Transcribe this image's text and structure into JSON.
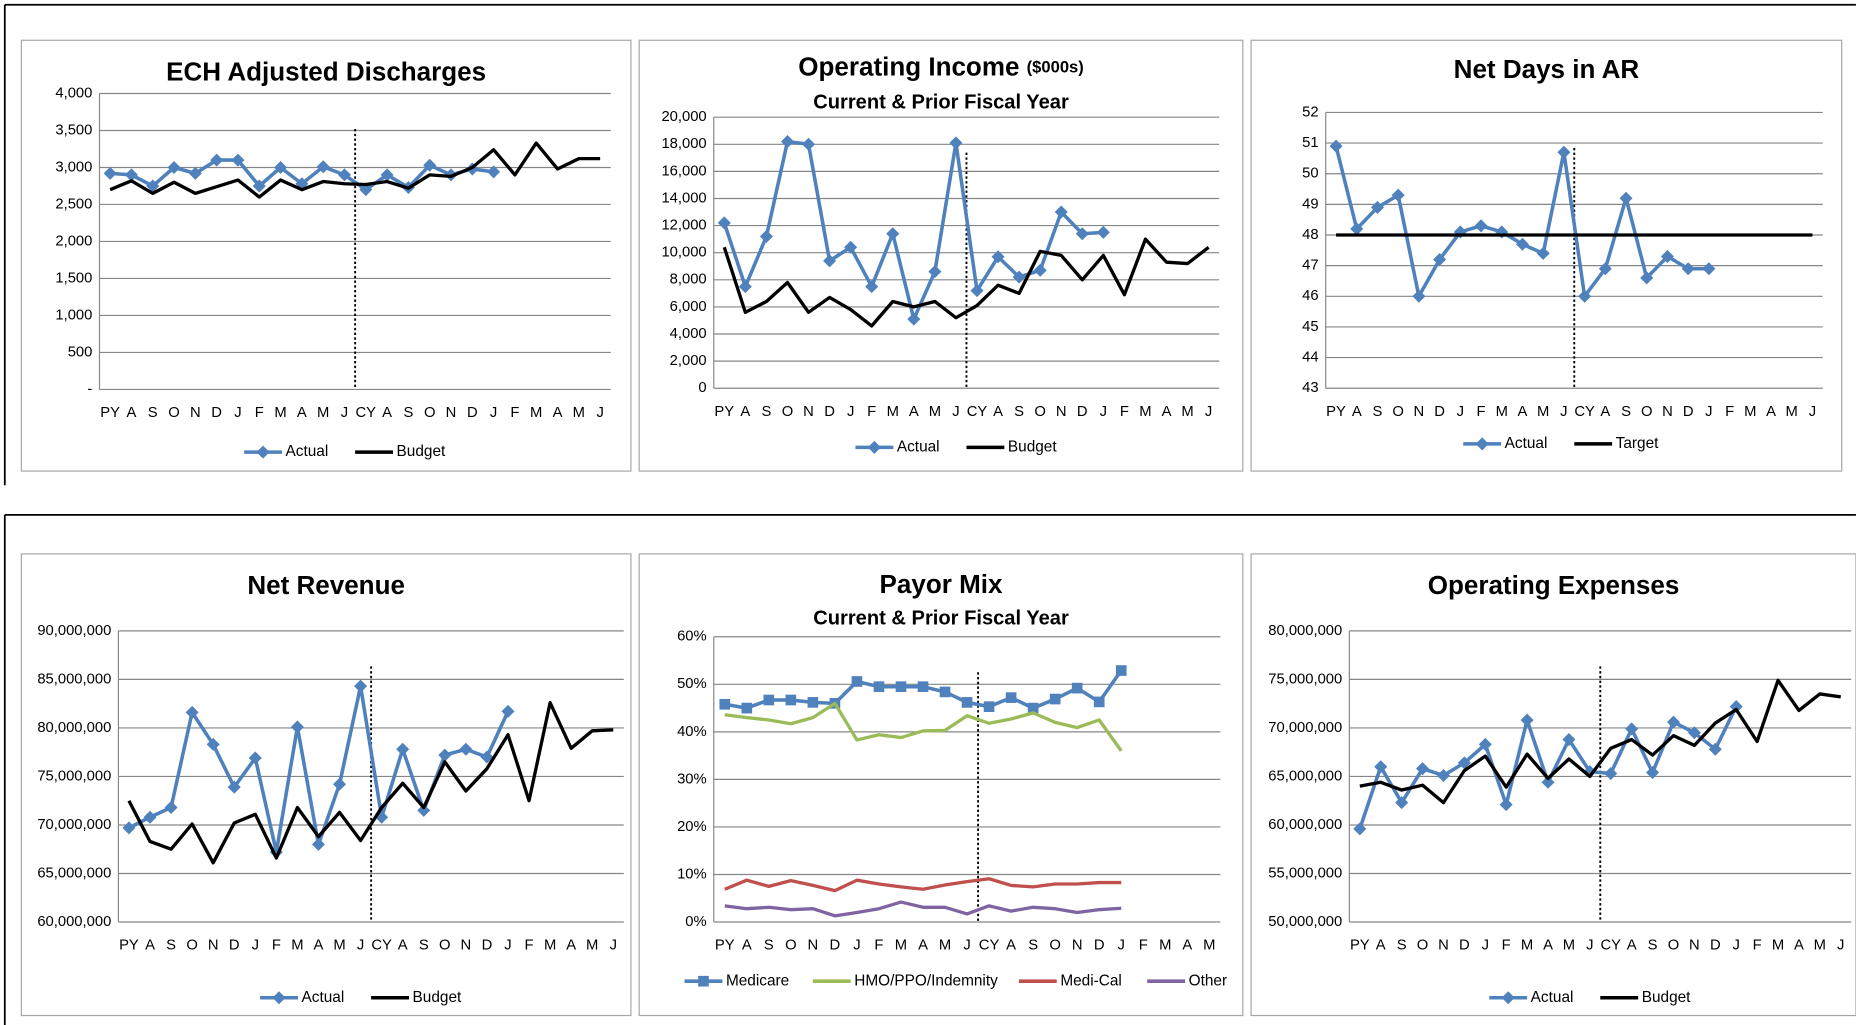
{
  "chart_data": [
    {
      "type": "line",
      "title": "ECH Adjusted Discharges",
      "categories": [
        "PY",
        "A",
        "S",
        "O",
        "N",
        "D",
        "J",
        "F",
        "M",
        "A",
        "M",
        "J",
        "CY",
        "A",
        "S",
        "O",
        "N",
        "D",
        "J",
        "F",
        "M",
        "A",
        "M",
        "J"
      ],
      "ylim": [
        0,
        4000
      ],
      "yticks": [
        {
          "value": 0,
          "label": "-"
        },
        500,
        {
          "value": 1000,
          "label": "1,000"
        },
        {
          "value": 1500,
          "label": "1,500"
        },
        {
          "value": 2000,
          "label": "2,000"
        },
        {
          "value": 2500,
          "label": "2,500"
        },
        {
          "value": 3000,
          "label": "3,000"
        },
        {
          "value": 3500,
          "label": "3,500"
        },
        {
          "value": 4000,
          "label": "4,000"
        }
      ],
      "grid": true,
      "series": [
        {
          "name": "Actual",
          "color": "#4f81bd",
          "marker": "diamond",
          "values": [
            2920,
            2900,
            2750,
            3000,
            2920,
            3100,
            3100,
            2750,
            3000,
            2780,
            3010,
            2900,
            2700,
            2900,
            2730,
            3030,
            2900,
            2980,
            2940,
            null,
            null,
            null,
            null,
            null
          ]
        },
        {
          "name": "Budget",
          "color": "#000000",
          "values": [
            2700,
            2820,
            2650,
            2800,
            2650,
            2740,
            2830,
            2600,
            2830,
            2700,
            2810,
            2780,
            2770,
            2810,
            2720,
            2900,
            2880,
            3000,
            3240,
            2900,
            3330,
            2980,
            3120,
            3120
          ]
        }
      ]
    },
    {
      "type": "line",
      "title": "Operating Income",
      "title_note": "($000s)",
      "subtitle": "Current & Prior Fiscal Year",
      "categories": [
        "PY",
        "A",
        "S",
        "O",
        "N",
        "D",
        "J",
        "F",
        "M",
        "A",
        "M",
        "J",
        "CY",
        "A",
        "S",
        "O",
        "N",
        "D",
        "J",
        "F",
        "M",
        "A",
        "M",
        "J"
      ],
      "ylim": [
        0,
        20000
      ],
      "yticks": [
        0,
        {
          "value": 2000,
          "label": "2,000"
        },
        {
          "value": 4000,
          "label": "4,000"
        },
        {
          "value": 6000,
          "label": "6,000"
        },
        {
          "value": 8000,
          "label": "8,000"
        },
        {
          "value": 10000,
          "label": "10,000"
        },
        {
          "value": 12000,
          "label": "12,000"
        },
        {
          "value": 14000,
          "label": "14,000"
        },
        {
          "value": 16000,
          "label": "16,000"
        },
        {
          "value": 18000,
          "label": "18,000"
        },
        {
          "value": 20000,
          "label": "20,000"
        }
      ],
      "grid": true,
      "series": [
        {
          "name": "Actual",
          "color": "#4f81bd",
          "marker": "diamond",
          "values": [
            12200,
            7500,
            11200,
            18200,
            18000,
            9400,
            10400,
            7500,
            11400,
            5100,
            8600,
            18100,
            7200,
            9700,
            8200,
            8700,
            13000,
            11400,
            11500,
            null,
            null,
            null,
            null,
            null
          ]
        },
        {
          "name": "Budget",
          "color": "#000000",
          "values": [
            10400,
            5600,
            6400,
            7800,
            5600,
            6700,
            5800,
            4600,
            6400,
            6000,
            6400,
            5200,
            6100,
            7600,
            7000,
            10100,
            9800,
            8000,
            9800,
            6900,
            11000,
            9300,
            9200,
            10400
          ]
        }
      ]
    },
    {
      "type": "line",
      "title": "Net Days in AR",
      "categories": [
        "PY",
        "A",
        "S",
        "O",
        "N",
        "D",
        "J",
        "F",
        "M",
        "A",
        "M",
        "J",
        "CY",
        "A",
        "S",
        "O",
        "N",
        "D",
        "J",
        "F",
        "M",
        "A",
        "M",
        "J"
      ],
      "ylim": [
        43,
        52
      ],
      "yticks": [
        43,
        44,
        45,
        46,
        47,
        48,
        49,
        50,
        51,
        52
      ],
      "grid": true,
      "series": [
        {
          "name": "Actual",
          "color": "#4f81bd",
          "marker": "diamond",
          "values": [
            50.9,
            48.2,
            48.9,
            49.3,
            46.0,
            47.2,
            48.1,
            48.3,
            48.1,
            47.7,
            47.4,
            50.7,
            46.0,
            46.9,
            49.2,
            46.6,
            47.3,
            46.9,
            46.9,
            null,
            null,
            null,
            null,
            null
          ]
        },
        {
          "name": "Target",
          "color": "#000000",
          "values": [
            48,
            48,
            48,
            48,
            48,
            48,
            48,
            48,
            48,
            48,
            48,
            48,
            48,
            48,
            48,
            48,
            48,
            48,
            48,
            48,
            48,
            48,
            48,
            48
          ]
        }
      ]
    },
    {
      "type": "line",
      "title": "Net Revenue",
      "categories": [
        "PY",
        "A",
        "S",
        "O",
        "N",
        "D",
        "J",
        "F",
        "M",
        "A",
        "M",
        "J",
        "CY",
        "A",
        "S",
        "O",
        "N",
        "D",
        "J",
        "F",
        "M",
        "A",
        "M",
        "J"
      ],
      "ylim": [
        60000000,
        90000000
      ],
      "yticks": [
        {
          "value": 60000000,
          "label": "60,000,000"
        },
        {
          "value": 65000000,
          "label": "65,000,000"
        },
        {
          "value": 70000000,
          "label": "70,000,000"
        },
        {
          "value": 75000000,
          "label": "75,000,000"
        },
        {
          "value": 80000000,
          "label": "80,000,000"
        },
        {
          "value": 85000000,
          "label": "85,000,000"
        },
        {
          "value": 90000000,
          "label": "90,000,000"
        }
      ],
      "grid": true,
      "series": [
        {
          "name": "Actual",
          "color": "#4f81bd",
          "marker": "diamond",
          "values": [
            69700000,
            70800000,
            71800000,
            81600000,
            78300000,
            73900000,
            76900000,
            67200000,
            80100000,
            68000000,
            74200000,
            84300000,
            70800000,
            77800000,
            71500000,
            77200000,
            77800000,
            77000000,
            81700000,
            null,
            null,
            null,
            null,
            null
          ]
        },
        {
          "name": "Budget",
          "color": "#000000",
          "values": [
            72500000,
            68300000,
            67500000,
            70100000,
            66100000,
            70200000,
            71100000,
            66600000,
            71800000,
            68800000,
            71300000,
            68400000,
            71800000,
            74300000,
            71800000,
            76500000,
            73500000,
            75800000,
            79300000,
            72500000,
            82600000,
            77900000,
            79700000,
            79800000
          ]
        }
      ]
    },
    {
      "type": "line",
      "title": "Payor Mix",
      "subtitle": "Current & Prior Fiscal Year",
      "categories": [
        "PY",
        "A",
        "S",
        "O",
        "N",
        "D",
        "J",
        "F",
        "M",
        "A",
        "M",
        "J",
        "CY",
        "A",
        "S",
        "O",
        "N",
        "D",
        "J",
        "F",
        "M",
        "A",
        "M"
      ],
      "ylim": [
        0,
        60
      ],
      "yticks": [
        {
          "value": 0,
          "label": "0%"
        },
        {
          "value": 10,
          "label": "10%"
        },
        {
          "value": 20,
          "label": "20%"
        },
        {
          "value": 30,
          "label": "30%"
        },
        {
          "value": 40,
          "label": "40%"
        },
        {
          "value": 50,
          "label": "50%"
        },
        {
          "value": 60,
          "label": "60%"
        }
      ],
      "grid": true,
      "series": [
        {
          "name": "Medicare",
          "color": "#4f81bd",
          "marker": "square",
          "values": [
            45.8,
            45.0,
            46.7,
            46.7,
            46.2,
            46.0,
            50.6,
            49.5,
            49.5,
            49.5,
            48.4,
            46.2,
            45.3,
            47.2,
            45.0,
            46.9,
            49.2,
            46.3,
            52.9,
            null,
            null,
            null,
            null
          ]
        },
        {
          "name": "HMO/PPO/Indemnity",
          "color": "#9bbb59",
          "values": [
            43.6,
            43.0,
            42.5,
            41.7,
            43.0,
            46.0,
            38.3,
            39.4,
            38.8,
            40.2,
            40.3,
            43.4,
            41.8,
            42.7,
            44.0,
            42.0,
            40.9,
            42.5,
            36.0,
            null,
            null,
            null,
            null
          ]
        },
        {
          "name": "Medi-Cal",
          "color": "#c0504d",
          "values": [
            6.9,
            8.8,
            7.5,
            8.7,
            7.7,
            6.6,
            8.8,
            8.0,
            7.4,
            6.9,
            7.8,
            8.5,
            9.1,
            7.7,
            7.4,
            8.0,
            8.0,
            8.3,
            8.3,
            null,
            null,
            null,
            null
          ]
        },
        {
          "name": "Other",
          "color": "#8064a2",
          "values": [
            3.4,
            2.8,
            3.1,
            2.6,
            2.8,
            1.3,
            2.0,
            2.8,
            4.2,
            3.1,
            3.1,
            1.7,
            3.4,
            2.3,
            3.1,
            2.8,
            2.0,
            2.6,
            2.9,
            null,
            null,
            null,
            null
          ]
        }
      ]
    },
    {
      "type": "line",
      "title": "Operating Expenses",
      "categories": [
        "PY",
        "A",
        "S",
        "O",
        "N",
        "D",
        "J",
        "F",
        "M",
        "A",
        "M",
        "J",
        "CY",
        "A",
        "S",
        "O",
        "N",
        "D",
        "J",
        "F",
        "M",
        "A",
        "M",
        "J"
      ],
      "ylim": [
        50000000,
        80000000
      ],
      "yticks": [
        {
          "value": 50000000,
          "label": "50,000,000"
        },
        {
          "value": 55000000,
          "label": "55,000,000"
        },
        {
          "value": 60000000,
          "label": "60,000,000"
        },
        {
          "value": 65000000,
          "label": "65,000,000"
        },
        {
          "value": 70000000,
          "label": "70,000,000"
        },
        {
          "value": 75000000,
          "label": "75,000,000"
        },
        {
          "value": 80000000,
          "label": "80,000,000"
        }
      ],
      "grid": true,
      "series": [
        {
          "name": "Actual",
          "color": "#4f81bd",
          "marker": "diamond",
          "values": [
            59600000,
            66000000,
            62300000,
            65800000,
            65100000,
            66400000,
            68300000,
            62100000,
            70800000,
            64400000,
            68800000,
            65500000,
            65300000,
            69900000,
            65400000,
            70600000,
            69500000,
            67800000,
            72200000,
            null,
            null,
            null,
            null,
            null
          ]
        },
        {
          "name": "Budget",
          "color": "#000000",
          "values": [
            64000000,
            64400000,
            63600000,
            64100000,
            62300000,
            65600000,
            67100000,
            63900000,
            67300000,
            64800000,
            66800000,
            65000000,
            67900000,
            68800000,
            67200000,
            69200000,
            68200000,
            70500000,
            71900000,
            68600000,
            74900000,
            71800000,
            73500000,
            73200000
          ]
        }
      ]
    }
  ]
}
